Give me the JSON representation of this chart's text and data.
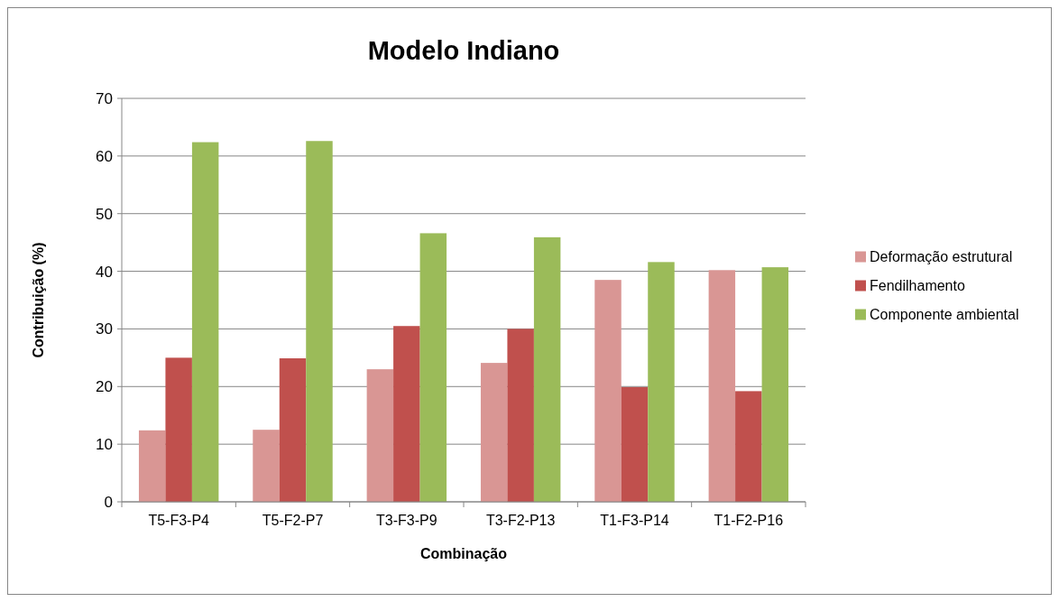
{
  "chart_data": {
    "type": "bar",
    "title": "Modelo Indiano",
    "xlabel": "Combinação",
    "ylabel": "Contribuição (%)",
    "categories": [
      "T5-F3-P4",
      "T5-F2-P7",
      "T3-F3-P9",
      "T3-F2-P13",
      "T1-F3-P14",
      "T1-F2-P16"
    ],
    "series": [
      {
        "name": "Deformação estrutural",
        "color": "#d99694",
        "values": [
          12.4,
          12.5,
          23.0,
          24.1,
          38.5,
          40.2
        ]
      },
      {
        "name": "Fendilhamento",
        "color": "#c0504d",
        "values": [
          25.0,
          24.9,
          30.5,
          30.0,
          19.9,
          19.2
        ]
      },
      {
        "name": "Componente ambiental",
        "color": "#9bbb59",
        "values": [
          62.4,
          62.6,
          46.6,
          45.9,
          41.6,
          40.7
        ]
      }
    ],
    "ylim": [
      0,
      70
    ],
    "yticks": [
      0,
      10,
      20,
      30,
      40,
      50,
      60,
      70
    ],
    "grid": "y",
    "legend": "right"
  }
}
